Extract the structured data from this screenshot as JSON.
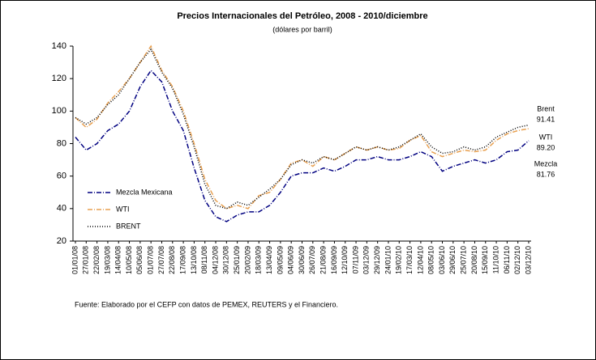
{
  "chart_data": {
    "type": "line",
    "title": "Precios Internacionales del Petróleo, 2008 - 2010/diciembre",
    "subtitle": "(dólares por barril)",
    "source": "Fuente: Elaborado por el CEFP con datos de PEMEX, REUTERS y el Financiero.",
    "categories": [
      "01/01/08",
      "27/01/08",
      "22/02/08",
      "19/03/08",
      "14/04/08",
      "10/05/08",
      "05/06/08",
      "01/07/08",
      "27/07/08",
      "22/08/08",
      "17/09/08",
      "13/10/08",
      "08/11/08",
      "04/12/08",
      "30/12/08",
      "25/01/09",
      "20/02/09",
      "18/03/09",
      "13/04/09",
      "09/05/09",
      "04/06/09",
      "30/06/09",
      "26/07/09",
      "21/08/09",
      "16/09/09",
      "12/10/09",
      "07/11/09",
      "03/12/09",
      "29/12/09",
      "24/01/10",
      "19/02/10",
      "17/03/10",
      "12/04/10",
      "08/05/10",
      "03/06/10",
      "29/06/10",
      "25/07/10",
      "20/08/10",
      "15/09/10",
      "11/10/10",
      "06/11/10",
      "02/12/10",
      "03/12/10"
    ],
    "series": [
      {
        "name": "Mezcla Mexicana",
        "color": "#000080",
        "dash": "6 2 1 2",
        "values": [
          84,
          76,
          80,
          88,
          92,
          100,
          115,
          125,
          118,
          100,
          88,
          65,
          45,
          35,
          32,
          36,
          38,
          38,
          42,
          50,
          60,
          62,
          62,
          65,
          63,
          66,
          70,
          70,
          72,
          70,
          70,
          72,
          75,
          72,
          63,
          66,
          68,
          70,
          68,
          70,
          75,
          76,
          81.76
        ]
      },
      {
        "name": "WTI",
        "color": "#e8a050",
        "dash": "6 2 1 2",
        "values": [
          96,
          90,
          95,
          105,
          112,
          120,
          130,
          140,
          125,
          115,
          100,
          80,
          58,
          45,
          40,
          42,
          40,
          48,
          50,
          58,
          68,
          70,
          66,
          72,
          70,
          74,
          78,
          76,
          78,
          76,
          77,
          82,
          85,
          75,
          72,
          74,
          76,
          75,
          76,
          82,
          86,
          88,
          89.2
        ]
      },
      {
        "name": "BRENT",
        "color": "#000000",
        "dash": "1 2",
        "values": [
          96,
          92,
          96,
          104,
          110,
          120,
          130,
          138,
          124,
          114,
          98,
          78,
          55,
          42,
          40,
          44,
          42,
          47,
          52,
          58,
          67,
          70,
          68,
          72,
          70,
          74,
          78,
          76,
          78,
          76,
          78,
          82,
          86,
          78,
          74,
          75,
          78,
          76,
          78,
          84,
          87,
          90,
          91.41
        ]
      }
    ],
    "annotations": [
      {
        "name": "Brent",
        "value_label": "91.41"
      },
      {
        "name": "WTI",
        "value_label": "89.20"
      },
      {
        "name": "Mezcla",
        "value_label": "81.76"
      }
    ],
    "ylim": [
      20,
      140
    ],
    "yticks": [
      20,
      40,
      60,
      80,
      100,
      120,
      140
    ]
  }
}
